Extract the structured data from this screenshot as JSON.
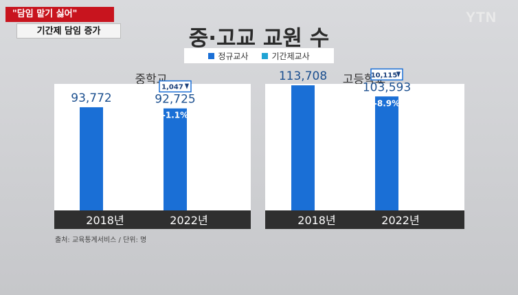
{
  "broadcast": {
    "tag_main": "\"담임 맡기 싫어\"",
    "tag_sub": "기간제 담임 증가",
    "logo": "YTN"
  },
  "chart_title": "중·고교 교원 수",
  "legend": [
    {
      "label": "정규교사",
      "color": "#1a6fd6"
    },
    {
      "label": "기간제교사",
      "color": "#1fa3d4"
    }
  ],
  "source": "출처: 교육통계서비스 / 단위: 명",
  "chart_data": [
    {
      "type": "bar",
      "title": "중학교",
      "categories": [
        "2018년",
        "2022년"
      ],
      "values": [
        93772,
        92725
      ],
      "value_labels": [
        "93,772",
        "92,725"
      ],
      "change_box": {
        "category": "2022년",
        "label": "1,047",
        "direction": "down"
      },
      "change_pct": {
        "category": "2022년",
        "label": "-1.1%"
      },
      "bar_color": "#1a6fd6"
    },
    {
      "type": "bar",
      "title": "고등학교",
      "categories": [
        "2018년",
        "2022년"
      ],
      "values": [
        113708,
        103593
      ],
      "value_labels": [
        "113,708",
        "103,593"
      ],
      "change_box": {
        "category": "2022년",
        "label": "10,115",
        "direction": "down"
      },
      "change_pct": {
        "category": "2022년",
        "label": "-8.9%"
      },
      "bar_color": "#1a6fd6"
    }
  ]
}
